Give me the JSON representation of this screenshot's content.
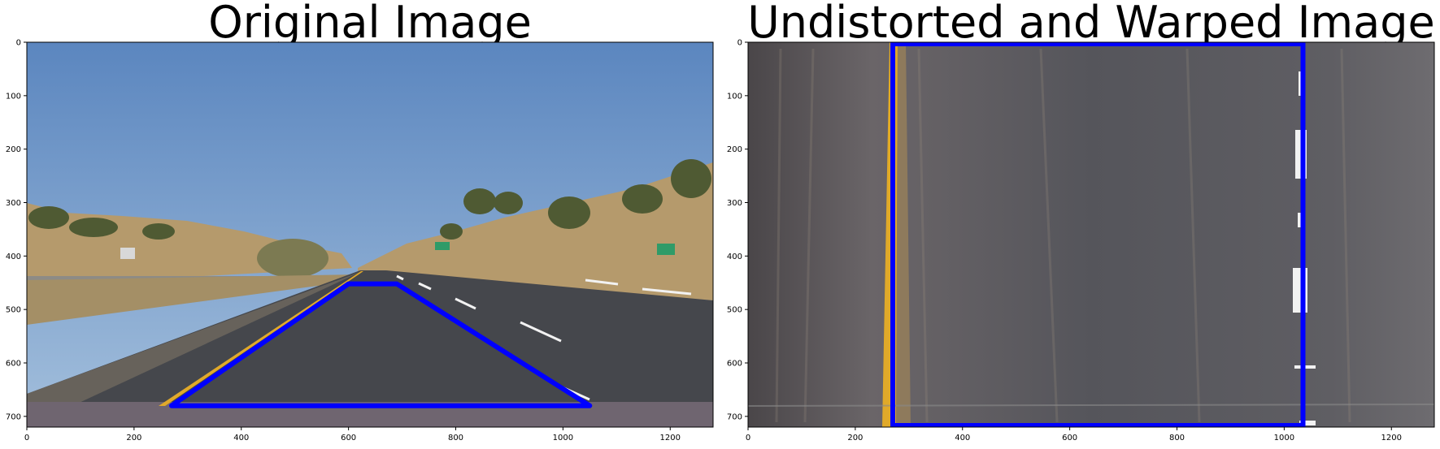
{
  "panels": [
    {
      "title": "Original Image",
      "x_ticks": [
        0,
        200,
        400,
        600,
        800,
        1000,
        1200
      ],
      "y_ticks": [
        0,
        100,
        200,
        300,
        400,
        500,
        600,
        700
      ],
      "x_range": [
        0,
        1280
      ],
      "y_range": [
        0,
        720
      ],
      "polygon": [
        [
          270,
          680
        ],
        [
          600,
          452
        ],
        [
          690,
          452
        ],
        [
          1050,
          680
        ]
      ]
    },
    {
      "title": "Undistorted and Warped Image",
      "x_ticks": [
        0,
        200,
        400,
        600,
        800,
        1000,
        1200
      ],
      "y_ticks": [
        0,
        100,
        200,
        300,
        400,
        500,
        600,
        700
      ],
      "x_range": [
        0,
        1280
      ],
      "y_range": [
        0,
        720
      ],
      "polygon": [
        [
          270,
          0
        ],
        [
          1035,
          0
        ],
        [
          1035,
          720
        ],
        [
          270,
          720
        ]
      ]
    }
  ],
  "colors": {
    "sky_top": "#5b86bf",
    "sky_bottom": "#a3bfdc",
    "road": "#45474c",
    "warped_road": "#5a5a60",
    "lane_yellow": "#e0a92a",
    "lane_white": "#f2f2f2",
    "outline_blue": "#0000ff",
    "hill": "#b59a6c",
    "tree": "#4f5a33"
  }
}
